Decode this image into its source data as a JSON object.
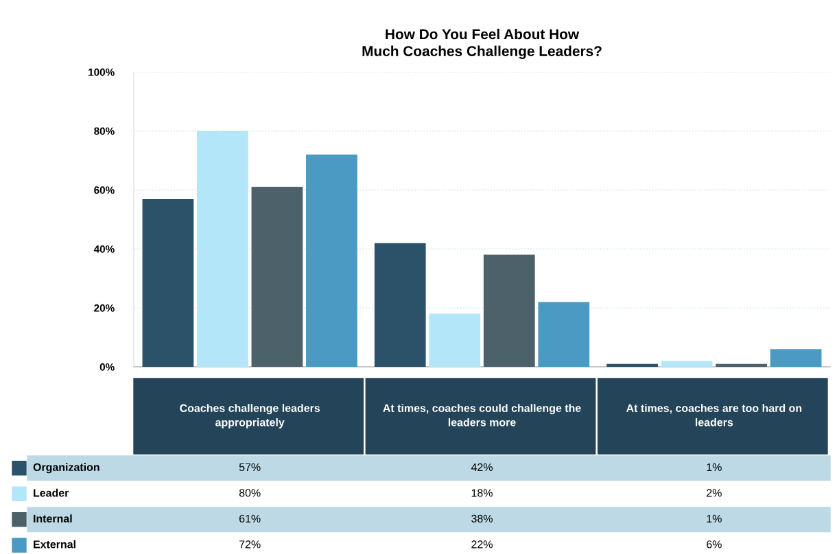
{
  "chart_data": {
    "type": "bar",
    "title": "How Do You Feel About How\nMuch Coaches Challenge Leaders?",
    "categories": [
      "Coaches challenge leaders\nappropriately",
      "At times, coaches could challenge the\nleaders more",
      "At times, coaches are too hard on\nleaders"
    ],
    "series": [
      {
        "name": "Organization",
        "color": "#2b5269",
        "values": [
          57,
          42,
          1
        ],
        "value_labels": [
          "57%",
          "42%",
          "1%"
        ]
      },
      {
        "name": "Leader",
        "color": "#b4e6f9",
        "values": [
          80,
          18,
          2
        ],
        "value_labels": [
          "80%",
          "18%",
          "2%"
        ]
      },
      {
        "name": "Internal",
        "color": "#4d616b",
        "values": [
          61,
          38,
          1
        ],
        "value_labels": [
          "61%",
          "38%",
          "1%"
        ]
      },
      {
        "name": "External",
        "color": "#4a9ac3",
        "values": [
          72,
          22,
          6
        ],
        "value_labels": [
          "72%",
          "22%",
          "6%"
        ]
      }
    ],
    "ylim": [
      0,
      100
    ],
    "yticks": [
      {
        "value": 0,
        "label": "0%"
      },
      {
        "value": 20,
        "label": "20%"
      },
      {
        "value": 40,
        "label": "40%"
      },
      {
        "value": 60,
        "label": "60%"
      },
      {
        "value": 80,
        "label": "80%"
      },
      {
        "value": 100,
        "label": "100%"
      }
    ],
    "grid": "y",
    "legend": "bottom"
  }
}
